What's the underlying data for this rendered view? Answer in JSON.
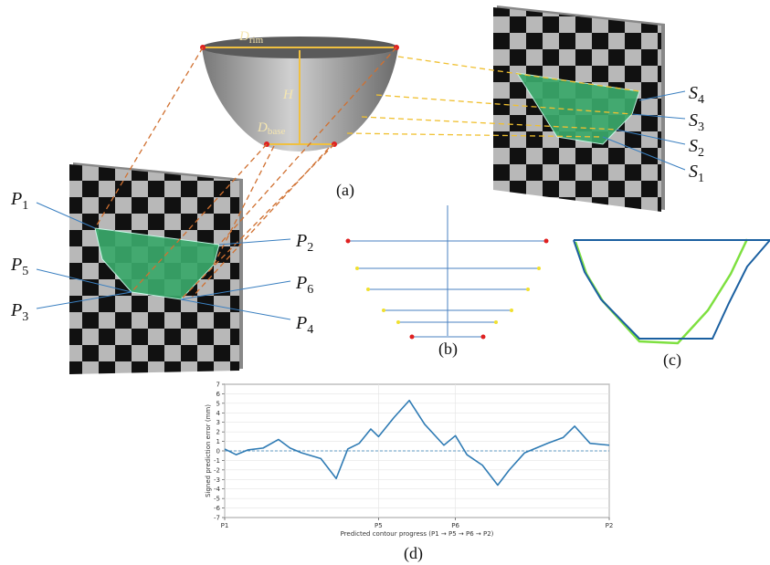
{
  "panels": {
    "a": "(a)",
    "b": "(b)",
    "c": "(c)",
    "d": "(d)"
  },
  "dimensions": {
    "rim": {
      "base": "D",
      "sub": "rim"
    },
    "height": "H",
    "base": {
      "base": "D",
      "sub": "base"
    }
  },
  "points": {
    "p1": {
      "base": "P",
      "sub": "1"
    },
    "p2": {
      "base": "P",
      "sub": "2"
    },
    "p3": {
      "base": "P",
      "sub": "3"
    },
    "p4": {
      "base": "P",
      "sub": "4"
    },
    "p5": {
      "base": "P",
      "sub": "5"
    },
    "p6": {
      "base": "P",
      "sub": "6"
    }
  },
  "sections": {
    "s1": {
      "base": "S",
      "sub": "1"
    },
    "s2": {
      "base": "S",
      "sub": "2"
    },
    "s3": {
      "base": "S",
      "sub": "3"
    },
    "s4": {
      "base": "S",
      "sub": "4"
    }
  },
  "chart_data": {
    "type": "line",
    "y_label": "Signed prediction error (mm)",
    "x_label": "Predicted contour progress (P1 → P5 → P6 → P2)",
    "x": [
      0,
      0.03,
      0.06,
      0.1,
      0.14,
      0.17,
      0.2,
      0.25,
      0.29,
      0.32,
      0.35,
      0.38,
      0.4,
      0.44,
      0.48,
      0.52,
      0.57,
      0.6,
      0.63,
      0.67,
      0.71,
      0.74,
      0.78,
      0.84,
      0.88,
      0.91,
      0.95,
      1
    ],
    "series": [
      {
        "color": "#2f7bb4",
        "values": [
          0.2,
          -0.4,
          0.1,
          0.3,
          1.2,
          0.3,
          -0.2,
          -0.8,
          -2.9,
          0.2,
          0.8,
          2.3,
          1.5,
          3.5,
          5.3,
          2.8,
          0.6,
          1.6,
          -0.4,
          -1.5,
          -3.6,
          -2.0,
          -0.2,
          0.8,
          1.4,
          2.6,
          0.8,
          0.6
        ]
      }
    ],
    "xlim": [
      0,
      1
    ],
    "xticks": [
      {
        "value": 0,
        "label": "P1"
      },
      {
        "value": 0.4,
        "label": "P5"
      },
      {
        "value": 0.6,
        "label": "P6"
      },
      {
        "value": 1,
        "label": "P2"
      }
    ],
    "ylim": [
      -7,
      7
    ],
    "yticks": [
      -7,
      -6,
      -5,
      -4,
      -3,
      -2,
      -1,
      0,
      1,
      2,
      3,
      4,
      5,
      6,
      7
    ],
    "reference_line": 0,
    "grid": true
  }
}
